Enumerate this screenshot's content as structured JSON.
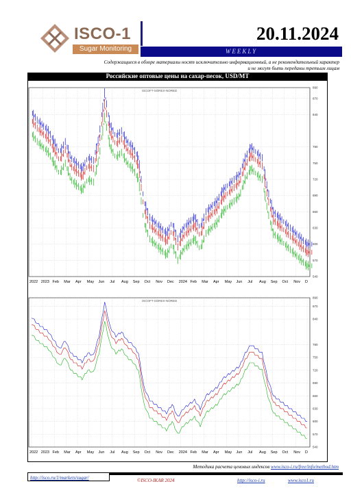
{
  "header": {
    "brand": "ISCO-1",
    "brand_sub": "Sugar Monitoring",
    "date": "20.11.2024",
    "weekly": "WEEKLY",
    "disclaimer": "Содержащиеся в обзоре материалы носят исключительно информационный, а не рекомендательный характер и не могут быть переданы третьим лицам"
  },
  "colors": {
    "header_bar": "#0b0b8a",
    "brand": "#8b6a55",
    "brand_sub_bg": "#c98a55",
    "blue_series": "#1a1ad0",
    "red_series": "#d01a1a",
    "green_series": "#1ab01a"
  },
  "chart_data": [
    {
      "type": "bar",
      "title": "Российские оптовые цены на сахар-песок, USD/MT",
      "subtitle": "ISCOFT-SOREX-NORED",
      "x_ticks": [
        "2022",
        "2023",
        "Feb",
        "Mar",
        "Apr",
        "May",
        "Jun",
        "Jul",
        "Aug",
        "Sep",
        "Oct",
        "Nov",
        "Dec",
        "2024",
        "Feb",
        "Mar",
        "Apr",
        "May",
        "Jun",
        "Jul",
        "Aug",
        "Sep",
        "Oct",
        "Nov",
        "D"
      ],
      "y_ticks": [
        890,
        870,
        840,
        780,
        750,
        720,
        690,
        660,
        630,
        600,
        570,
        540
      ],
      "ylim": [
        540,
        890
      ],
      "grid": true,
      "series": [
        {
          "values": [
            845,
            830,
            820,
            810,
            790,
            770,
            790,
            760,
            750,
            740,
            760,
            755,
            800,
            880,
            820,
            800,
            810,
            790,
            780,
            760,
            680,
            650,
            640,
            630,
            620,
            640,
            610,
            630,
            640,
            650,
            630,
            660,
            670,
            680,
            700,
            710,
            720,
            730,
            760,
            780,
            770,
            760,
            700,
            660,
            650,
            640,
            630,
            620,
            610,
            600
          ]
        },
        {
          "values": [
            830,
            815,
            805,
            795,
            775,
            755,
            775,
            745,
            735,
            725,
            745,
            740,
            785,
            860,
            805,
            785,
            795,
            775,
            765,
            745,
            665,
            635,
            625,
            615,
            605,
            625,
            595,
            615,
            625,
            635,
            615,
            645,
            655,
            665,
            685,
            695,
            705,
            715,
            745,
            765,
            755,
            745,
            685,
            645,
            635,
            625,
            615,
            605,
            595,
            585
          ]
        },
        {
          "values": [
            805,
            790,
            780,
            770,
            750,
            730,
            750,
            720,
            710,
            700,
            720,
            715,
            760,
            835,
            780,
            760,
            770,
            750,
            740,
            720,
            640,
            610,
            600,
            590,
            580,
            600,
            570,
            590,
            600,
            610,
            590,
            620,
            630,
            640,
            660,
            670,
            680,
            690,
            720,
            740,
            730,
            720,
            660,
            620,
            610,
            600,
            590,
            580,
            570,
            560
          ]
        }
      ]
    },
    {
      "type": "line",
      "subtitle": "ISCOFT-SOREX-NORED",
      "x_ticks": [
        "2022",
        "2023",
        "Feb",
        "Mar",
        "Apr",
        "May",
        "Jun",
        "Jul",
        "Aug",
        "Sep",
        "Oct",
        "Nov",
        "Dec",
        "2024",
        "Feb",
        "Mar",
        "Apr",
        "May",
        "Jun",
        "Jul",
        "Aug",
        "Sep",
        "Oct",
        "Nov",
        "D"
      ],
      "y_ticks": [
        890,
        870,
        840,
        780,
        750,
        720,
        690,
        660,
        630,
        600,
        570,
        540
      ],
      "ylim": [
        540,
        890
      ],
      "grid": true,
      "series": [
        {
          "values": [
            845,
            830,
            820,
            810,
            790,
            770,
            790,
            760,
            750,
            740,
            760,
            755,
            800,
            880,
            820,
            800,
            810,
            790,
            780,
            760,
            680,
            650,
            640,
            630,
            620,
            640,
            610,
            630,
            640,
            650,
            630,
            660,
            670,
            680,
            700,
            710,
            720,
            730,
            760,
            780,
            770,
            760,
            700,
            660,
            650,
            640,
            630,
            620,
            610,
            600
          ]
        },
        {
          "values": [
            830,
            815,
            805,
            795,
            775,
            755,
            775,
            745,
            735,
            725,
            745,
            740,
            785,
            860,
            805,
            785,
            795,
            775,
            765,
            745,
            665,
            635,
            625,
            615,
            605,
            625,
            595,
            615,
            625,
            635,
            615,
            645,
            655,
            665,
            685,
            695,
            705,
            715,
            745,
            765,
            755,
            745,
            685,
            645,
            635,
            625,
            615,
            605,
            595,
            585
          ]
        },
        {
          "values": [
            805,
            790,
            780,
            770,
            750,
            730,
            750,
            720,
            710,
            700,
            720,
            715,
            760,
            835,
            780,
            760,
            770,
            750,
            740,
            720,
            640,
            610,
            600,
            590,
            580,
            600,
            570,
            590,
            600,
            610,
            590,
            620,
            630,
            640,
            660,
            670,
            680,
            690,
            720,
            740,
            730,
            720,
            660,
            620,
            610,
            600,
            590,
            580,
            570,
            560
          ]
        }
      ]
    }
  ],
  "footer": {
    "source_prefix": "Методика расчета ценовых индексов",
    "source_link": "www.isco-i.ru/free/info/method.htm",
    "link1": "http://isco.ru/1/markets/sugar/",
    "copyright": "©ISCO-IKAR 2024",
    "link2": "http://isco-i.ru",
    "link3": "www.isco1.ru"
  }
}
